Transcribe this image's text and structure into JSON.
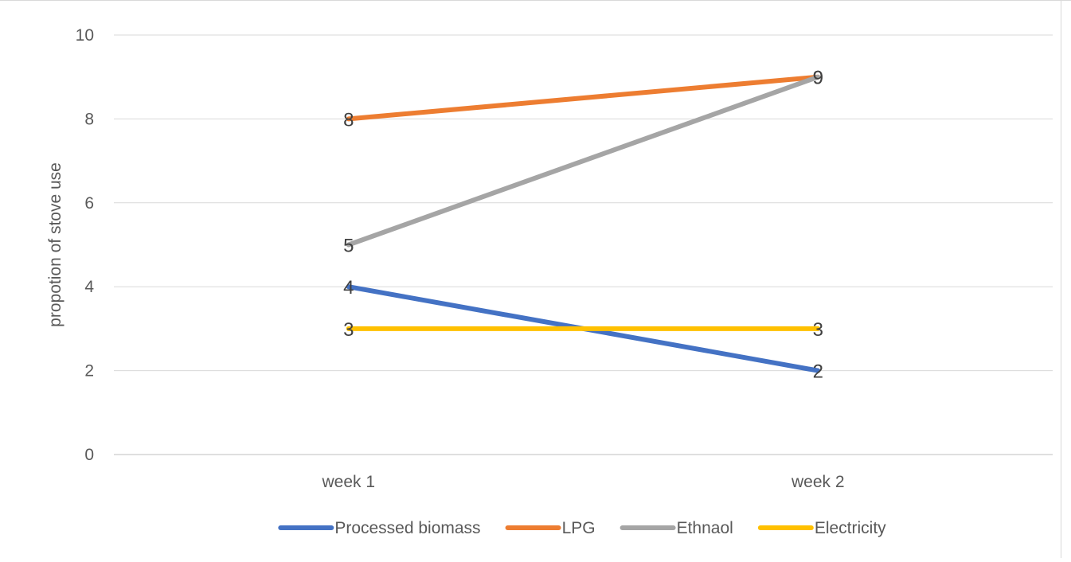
{
  "chart_data": {
    "type": "line",
    "categories": [
      "week 1",
      "week 2"
    ],
    "series": [
      {
        "name": "Processed biomass",
        "values": [
          4,
          2
        ],
        "color": "#4472C4"
      },
      {
        "name": "LPG",
        "values": [
          8,
          9
        ],
        "color": "#ED7D31"
      },
      {
        "name": "Ethnaol",
        "values": [
          5,
          9
        ],
        "color": "#A5A5A5"
      },
      {
        "name": "Electricity",
        "values": [
          3,
          3
        ],
        "color": "#FFC000"
      }
    ],
    "title": "",
    "xlabel": "",
    "ylabel": "propotion of stove use",
    "ylim": [
      0,
      10
    ],
    "yticks": [
      0,
      2,
      4,
      6,
      8,
      10
    ],
    "grid": true,
    "legend_position": "bottom",
    "data_labels": true
  }
}
